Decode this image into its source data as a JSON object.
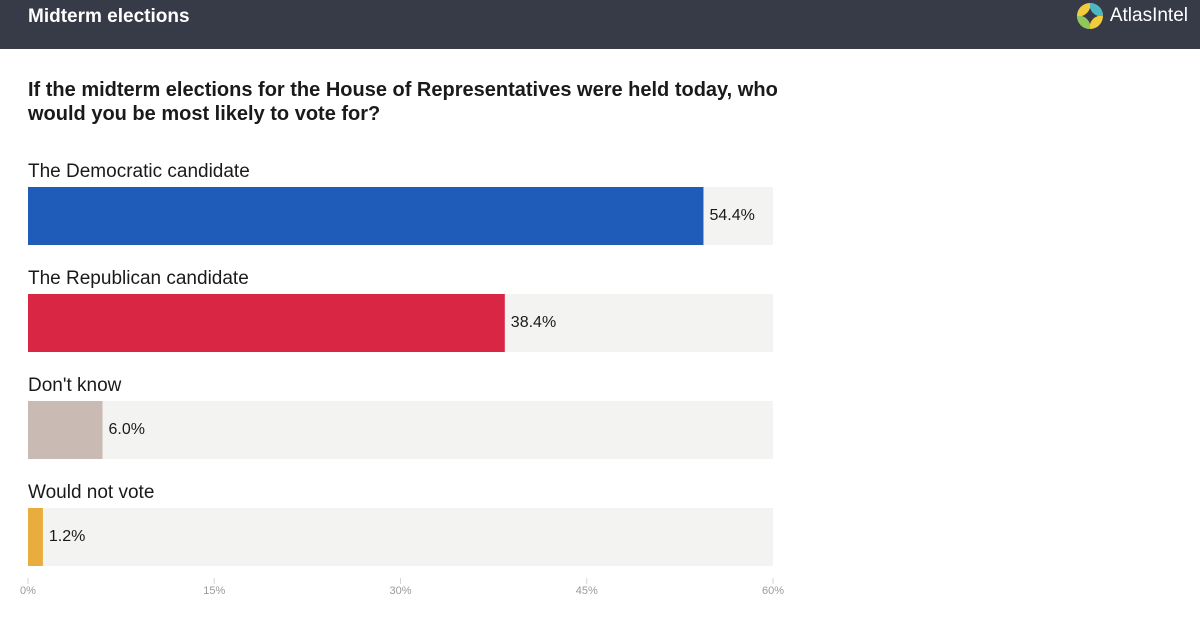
{
  "header": {
    "section_title": "Midterm elections",
    "brand_name": "AtlasIntel",
    "logo_icon": "atlasintel-logo-icon"
  },
  "chart_data": {
    "type": "bar",
    "orientation": "horizontal",
    "title": "If the midterm elections for the House of Representatives were held today, who would you be most likely to vote for?",
    "categories": [
      "The Democratic candidate",
      "The Republican candidate",
      "Don't know",
      "Would not vote"
    ],
    "values": [
      54.4,
      38.4,
      6.0,
      1.2
    ],
    "value_labels": [
      "54.4%",
      "38.4%",
      "6.0%",
      "1.2%"
    ],
    "colors": [
      "#1f5bb8",
      "#d92644",
      "#c9bab3",
      "#e8ad3c"
    ],
    "track_color": "#f3f3f2",
    "xlim": [
      0,
      60
    ],
    "xticks": [
      "0%",
      "15%",
      "30%",
      "45%",
      "60%"
    ],
    "grid": false,
    "legend": "none"
  }
}
